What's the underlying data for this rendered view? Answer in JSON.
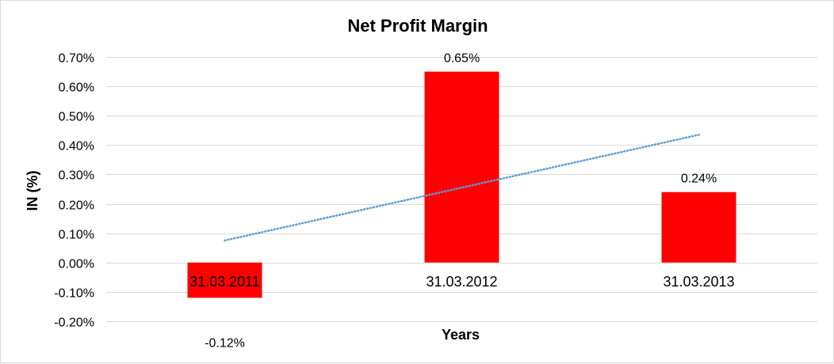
{
  "chart_data": {
    "type": "bar",
    "title": "Net Profit Margin",
    "xlabel": "Years",
    "ylabel": "IN (%)",
    "categories": [
      "31.03.2011",
      "31.03.2012",
      "31.03.2013"
    ],
    "values": [
      -0.12,
      0.65,
      0.24
    ],
    "data_labels": [
      "-0.12%",
      "0.65%",
      "0.24%"
    ],
    "ylim": [
      -0.2,
      0.7
    ],
    "yticks": [
      -0.2,
      -0.1,
      0.0,
      0.1,
      0.2,
      0.3,
      0.4,
      0.5,
      0.6,
      0.7
    ],
    "ytick_labels": [
      "-0.20%",
      "-0.10%",
      "0.00%",
      "0.10%",
      "0.20%",
      "0.30%",
      "0.40%",
      "0.50%",
      "0.60%",
      "0.70%"
    ],
    "trendline": {
      "type": "linear",
      "style": "dotted",
      "values": [
        0.075,
        0.255,
        0.435
      ]
    },
    "grid": true,
    "legend": "none",
    "colors": {
      "bars": "#ff0000",
      "trendline": "#5b9bd5",
      "grid": "#d9d9d9"
    }
  }
}
